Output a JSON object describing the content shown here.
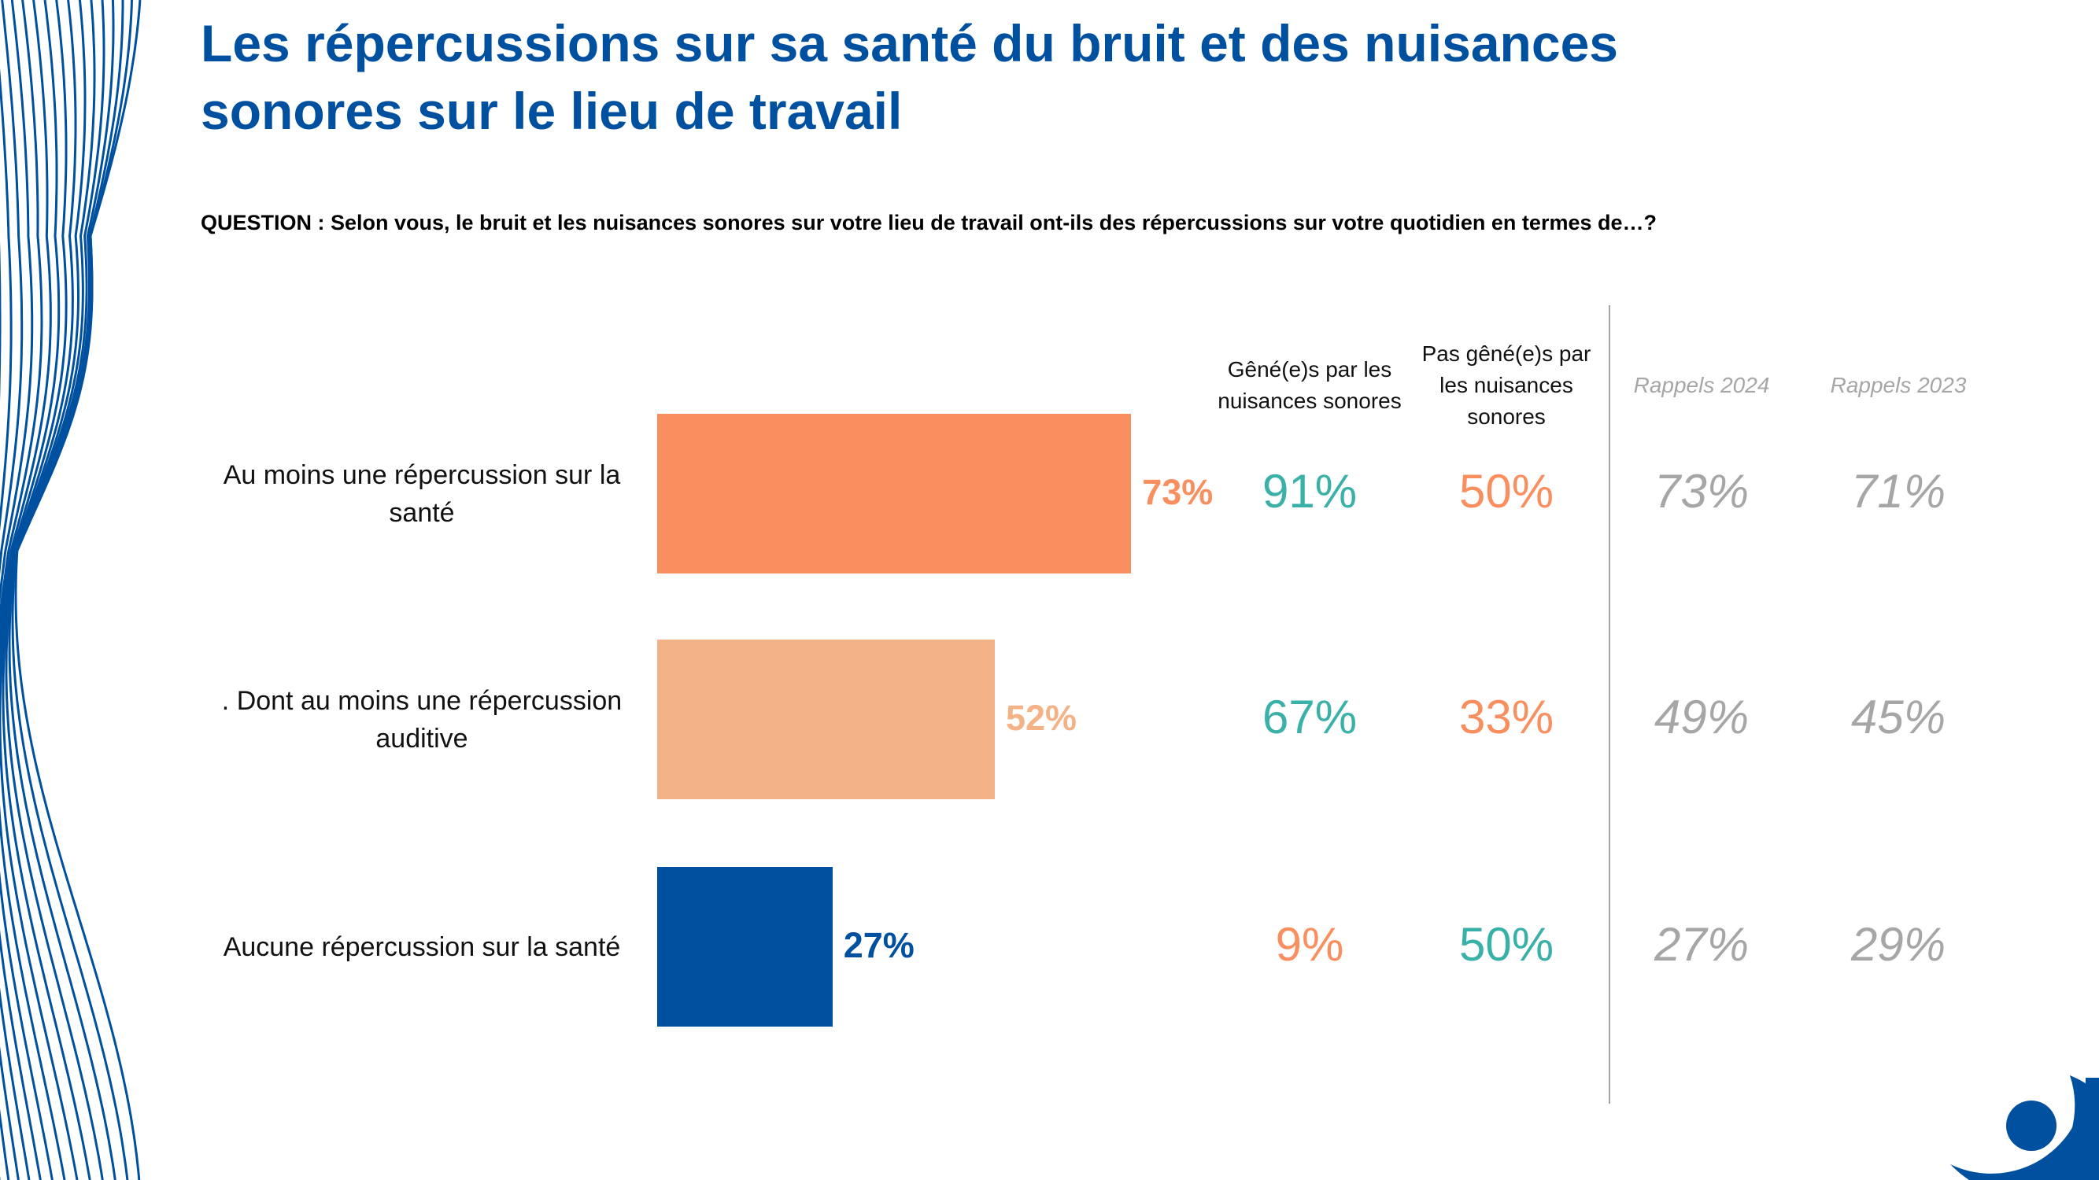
{
  "title": "Les répercussions sur sa santé du bruit et des nuisances sonores sur le lieu de travail",
  "question": "QUESTION : Selon vous, le bruit et les nuisances sonores sur votre lieu de travail ont-ils des répercussions sur votre quotidien en termes de…?",
  "colors": {
    "title": "#0050A0",
    "orange": "#F98F5F",
    "light_orange": "#F4B386",
    "blue": "#0050A0",
    "teal": "#3AB1A8",
    "gray": "#A6A6A6"
  },
  "chart_data": {
    "type": "bar",
    "orientation": "horizontal",
    "categories": [
      "Au moins une répercussion sur la santé",
      ". Dont au moins une répercussion auditive",
      "Aucune répercussion sur la santé"
    ],
    "values": [
      73,
      52,
      27
    ],
    "value_labels": [
      "73%",
      "52%",
      "27%"
    ],
    "bar_colors": [
      "#F98F5F",
      "#F4B386",
      "#0050A0"
    ],
    "xlim": [
      0,
      100
    ]
  },
  "table": {
    "columns": [
      {
        "header": "Gêné(e)s par les nuisances sonores",
        "values": [
          "91%",
          "67%",
          "9%"
        ],
        "colors": [
          "#3AB1A8",
          "#3AB1A8",
          "#F98F5F"
        ]
      },
      {
        "header": "Pas gêné(e)s par les nuisances sonores",
        "values": [
          "50%",
          "33%",
          "50%"
        ],
        "colors": [
          "#F98F5F",
          "#F98F5F",
          "#3AB1A8"
        ]
      },
      {
        "header": "Rappels 2024",
        "values": [
          "73%",
          "49%",
          "27%"
        ],
        "colors": [
          "#A6A6A6",
          "#A6A6A6",
          "#A6A6A6"
        ]
      },
      {
        "header": "Rappels 2023",
        "values": [
          "71%",
          "45%",
          "29%"
        ],
        "colors": [
          "#A6A6A6",
          "#A6A6A6",
          "#A6A6A6"
        ]
      }
    ]
  }
}
